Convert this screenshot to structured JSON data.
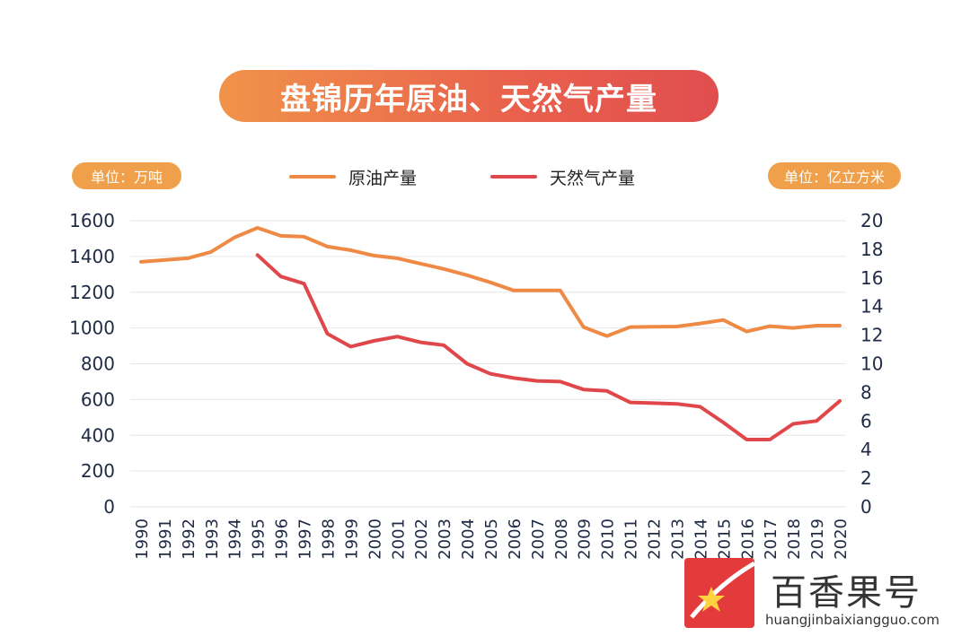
{
  "title": "盘锦历年原油、天然气产量",
  "left_unit": "单位：万吨",
  "right_unit": "单位：亿立方米",
  "watermark": {
    "name": "百香果号",
    "url": "huangjinbaixiangguo.com"
  },
  "colors": {
    "oil": "#ee8a45",
    "gas": "#e0474b",
    "grid": "#e6e6e6",
    "axis_text": "#1f2a44"
  },
  "chart_data": {
    "type": "line",
    "title": "盘锦历年原油、天然气产量",
    "x": [
      "1990",
      "1991",
      "1992",
      "1993",
      "1994",
      "1995",
      "1996",
      "1997",
      "1998",
      "1999",
      "2000",
      "2001",
      "2002",
      "2003",
      "2004",
      "2005",
      "2006",
      "2007",
      "2008",
      "2009",
      "2010",
      "2011",
      "2012",
      "2013",
      "2014",
      "2015",
      "2016",
      "2017",
      "2018",
      "2019",
      "2020"
    ],
    "y_left_ticks": [
      "0",
      "200",
      "400",
      "600",
      "800",
      "1000",
      "1200",
      "1400",
      "1600"
    ],
    "y_right_ticks": [
      "0",
      "2",
      "4",
      "6",
      "8",
      "10",
      "12",
      "14",
      "16",
      "18",
      "20"
    ],
    "ylim_left": [
      0,
      1600
    ],
    "ylim_right": [
      0,
      20
    ],
    "grid": true,
    "legend_position": "top-center",
    "series": [
      {
        "name": "原油产量",
        "axis": "left",
        "color": "#ee8a45",
        "values": [
          1370,
          1380,
          1390,
          1425,
          1505,
          1560,
          1515,
          1510,
          1455,
          1435,
          1405,
          1390,
          1360,
          1330,
          1295,
          1255,
          1210,
          1210,
          1210,
          1005,
          955,
          1005,
          1007,
          1008,
          1025,
          1045,
          980,
          1010,
          1000,
          1013,
          1013
        ]
      },
      {
        "name": "天然气产量",
        "axis": "right",
        "color": "#e0474b",
        "values": [
          null,
          null,
          null,
          null,
          null,
          17.6,
          16.1,
          15.6,
          12.1,
          11.2,
          11.6,
          11.9,
          11.5,
          11.3,
          10,
          9.3,
          9,
          8.8,
          8.75,
          8.2,
          8.1,
          7.3,
          7.25,
          7.2,
          7,
          5.9,
          4.7,
          4.7,
          5.8,
          6,
          7.4
        ]
      }
    ]
  }
}
